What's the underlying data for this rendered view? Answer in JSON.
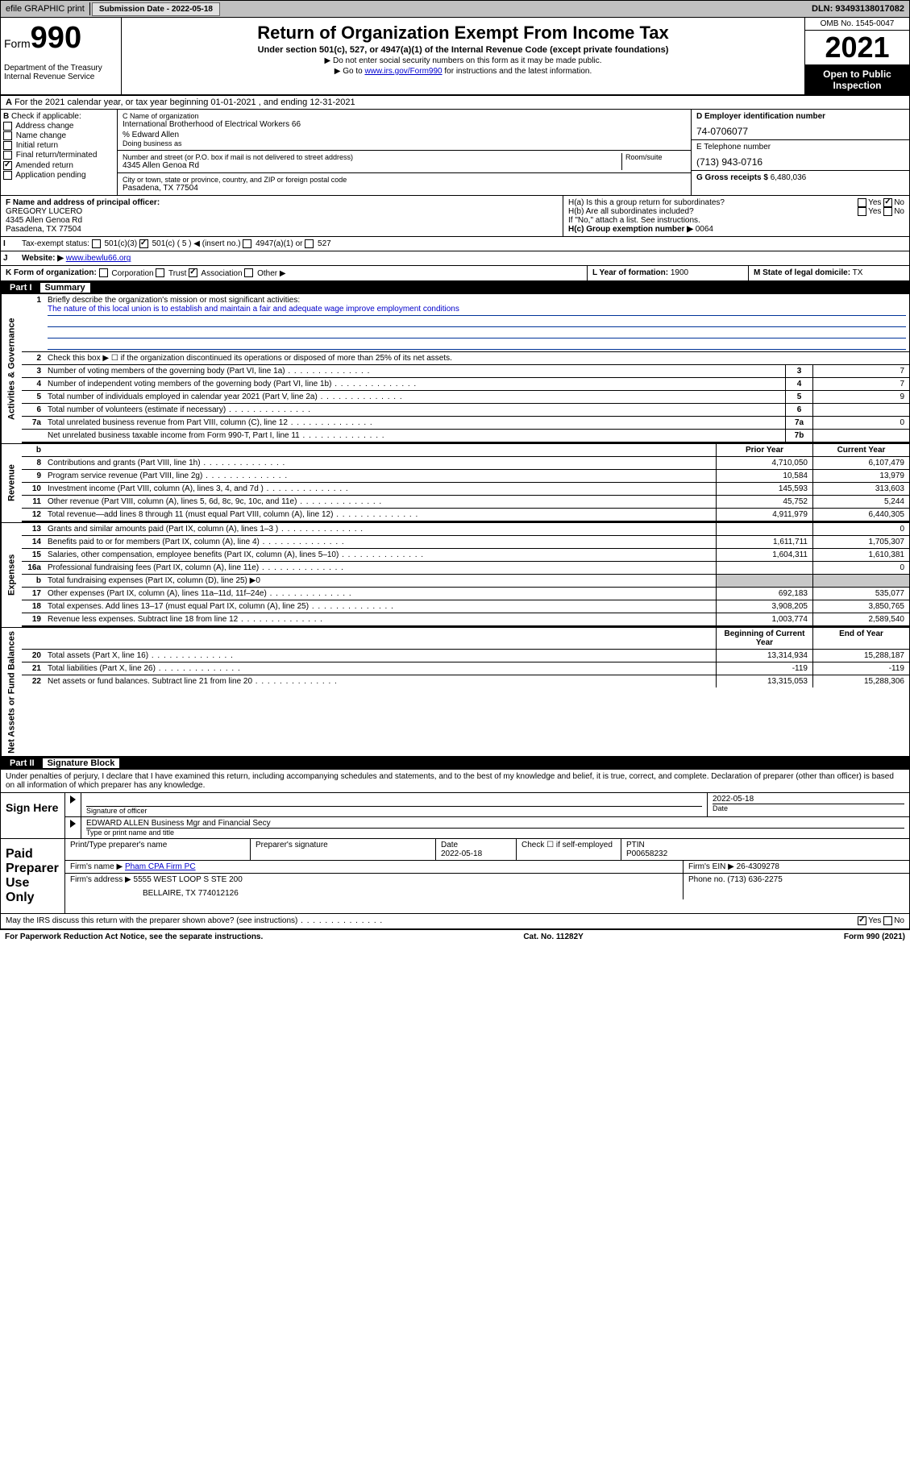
{
  "topbar": {
    "efile": "efile GRAPHIC print",
    "submission_label": "Submission Date - 2022-05-18",
    "dln": "DLN: 93493138017082"
  },
  "header": {
    "form_word": "Form",
    "form_num": "990",
    "dept": "Department of the Treasury\nInternal Revenue Service",
    "title": "Return of Organization Exempt From Income Tax",
    "sub": "Under section 501(c), 527, or 4947(a)(1) of the Internal Revenue Code (except private foundations)",
    "note1": "Do not enter social security numbers on this form as it may be made public.",
    "note2_pre": "Go to ",
    "note2_link": "www.irs.gov/Form990",
    "note2_post": " for instructions and the latest information.",
    "omb": "OMB No. 1545-0047",
    "year": "2021",
    "open": "Open to Public Inspection"
  },
  "lineA": "For the 2021 calendar year, or tax year beginning 01-01-2021   , and ending 12-31-2021",
  "B": {
    "label": "Check if applicable:",
    "items": [
      "Address change",
      "Name change",
      "Initial return",
      "Final return/terminated",
      "Amended return",
      "Application pending"
    ],
    "checked_idx": 4,
    "prefix": "B"
  },
  "C": {
    "name_lbl": "C Name of organization",
    "name": "International Brotherhood of Electrical Workers 66",
    "care_lbl": "% Edward Allen",
    "dba_lbl": "Doing business as",
    "addr_lbl": "Number and street (or P.O. box if mail is not delivered to street address)",
    "room_lbl": "Room/suite",
    "addr": "4345 Allen Genoa Rd",
    "city_lbl": "City or town, state or province, country, and ZIP or foreign postal code",
    "city": "Pasadena, TX  77504"
  },
  "D": {
    "lbl": "D Employer identification number",
    "val": "74-0706077"
  },
  "E": {
    "lbl": "E Telephone number",
    "val": "(713) 943-0716"
  },
  "G": {
    "lbl": "G Gross receipts $",
    "val": "6,480,036"
  },
  "F": {
    "lbl": "F  Name and address of principal officer:",
    "name": "GREGORY LUCERO",
    "addr1": "4345 Allen Genoa Rd",
    "addr2": "Pasadena, TX  77504"
  },
  "H": {
    "a": "H(a)  Is this a group return for subordinates?",
    "b": "H(b)  Are all subordinates included?",
    "b_note": "If \"No,\" attach a list. See instructions.",
    "c_lbl": "H(c)  Group exemption number ▶",
    "c_val": "0064",
    "yes": "Yes",
    "no": "No"
  },
  "I": {
    "lbl": "Tax-exempt status:",
    "opts": [
      "501(c)(3)",
      "501(c) ( 5 ) ◀ (insert no.)",
      "4947(a)(1) or",
      "527"
    ],
    "checked_idx": 1
  },
  "J": {
    "lbl": "Website: ▶",
    "val": "www.ibewlu66.org"
  },
  "K": {
    "lbl": "K Form of organization:",
    "opts": [
      "Corporation",
      "Trust",
      "Association",
      "Other ▶"
    ],
    "checked_idx": 2
  },
  "L": {
    "lbl": "L Year of formation:",
    "val": "1900"
  },
  "M": {
    "lbl": "M State of legal domicile:",
    "val": "TX"
  },
  "partI": {
    "title": "Part I",
    "name": "Summary",
    "sections": [
      {
        "side": "Activities & Governance",
        "rows": [
          {
            "type": "mission",
            "n": "1",
            "t": "Briefly describe the organization's mission or most significant activities:",
            "val": "The nature of this local union is to establish and maintain a fair and adequate wage improve employment conditions"
          },
          {
            "type": "check",
            "n": "2",
            "t": "Check this box ▶ ☐  if the organization discontinued its operations or disposed of more than 25% of its net assets."
          },
          {
            "type": "num",
            "n": "3",
            "t": "Number of voting members of the governing body (Part VI, line 1a)",
            "bx": "3",
            "v": "7"
          },
          {
            "type": "num",
            "n": "4",
            "t": "Number of independent voting members of the governing body (Part VI, line 1b)",
            "bx": "4",
            "v": "7"
          },
          {
            "type": "num",
            "n": "5",
            "t": "Total number of individuals employed in calendar year 2021 (Part V, line 2a)",
            "bx": "5",
            "v": "9"
          },
          {
            "type": "num",
            "n": "6",
            "t": "Total number of volunteers (estimate if necessary)",
            "bx": "6",
            "v": ""
          },
          {
            "type": "num",
            "n": "7a",
            "t": "Total unrelated business revenue from Part VIII, column (C), line 12",
            "bx": "7a",
            "v": "0"
          },
          {
            "type": "num",
            "n": "",
            "t": "Net unrelated business taxable income from Form 990-T, Part I, line 11",
            "bx": "7b",
            "v": "",
            "thick": true
          }
        ]
      },
      {
        "side": "Revenue",
        "header": [
          "b",
          "",
          "Prior Year",
          "Current Year"
        ],
        "rows": [
          {
            "n": "8",
            "t": "Contributions and grants (Part VIII, line 1h)",
            "p": "4,710,050",
            "c": "6,107,479"
          },
          {
            "n": "9",
            "t": "Program service revenue (Part VIII, line 2g)",
            "p": "10,584",
            "c": "13,979"
          },
          {
            "n": "10",
            "t": "Investment income (Part VIII, column (A), lines 3, 4, and 7d )",
            "p": "145,593",
            "c": "313,603"
          },
          {
            "n": "11",
            "t": "Other revenue (Part VIII, column (A), lines 5, 6d, 8c, 9c, 10c, and 11e)",
            "p": "45,752",
            "c": "5,244"
          },
          {
            "n": "12",
            "t": "Total revenue—add lines 8 through 11 (must equal Part VIII, column (A), line 12)",
            "p": "4,911,979",
            "c": "6,440,305",
            "thick": true
          }
        ]
      },
      {
        "side": "Expenses",
        "rows": [
          {
            "n": "13",
            "t": "Grants and similar amounts paid (Part IX, column (A), lines 1–3 )",
            "p": "",
            "c": "0"
          },
          {
            "n": "14",
            "t": "Benefits paid to or for members (Part IX, column (A), line 4)",
            "p": "1,611,711",
            "c": "1,705,307"
          },
          {
            "n": "15",
            "t": "Salaries, other compensation, employee benefits (Part IX, column (A), lines 5–10)",
            "p": "1,604,311",
            "c": "1,610,381"
          },
          {
            "n": "16a",
            "t": "Professional fundraising fees (Part IX, column (A), line 11e)",
            "p": "",
            "c": "0"
          },
          {
            "n": "b",
            "t": "Total fundraising expenses (Part IX, column (D), line 25) ▶0",
            "shade": true
          },
          {
            "n": "17",
            "t": "Other expenses (Part IX, column (A), lines 11a–11d, 11f–24e)",
            "p": "692,183",
            "c": "535,077"
          },
          {
            "n": "18",
            "t": "Total expenses. Add lines 13–17 (must equal Part IX, column (A), line 25)",
            "p": "3,908,205",
            "c": "3,850,765"
          },
          {
            "n": "19",
            "t": "Revenue less expenses. Subtract line 18 from line 12",
            "p": "1,003,774",
            "c": "2,589,540",
            "thick": true
          }
        ]
      },
      {
        "side": "Net Assets or Fund Balances",
        "header": [
          "",
          "",
          "Beginning of Current Year",
          "End of Year"
        ],
        "rows": [
          {
            "n": "20",
            "t": "Total assets (Part X, line 16)",
            "p": "13,314,934",
            "c": "15,288,187"
          },
          {
            "n": "21",
            "t": "Total liabilities (Part X, line 26)",
            "p": "-119",
            "c": "-119"
          },
          {
            "n": "22",
            "t": "Net assets or fund balances. Subtract line 21 from line 20",
            "p": "13,315,053",
            "c": "15,288,306"
          }
        ]
      }
    ]
  },
  "partII": {
    "title": "Part II",
    "name": "Signature Block",
    "decl": "Under penalties of perjury, I declare that I have examined this return, including accompanying schedules and statements, and to the best of my knowledge and belief, it is true, correct, and complete. Declaration of preparer (other than officer) is based on all information of which preparer has any knowledge.",
    "sign_here": "Sign Here",
    "sig_officer_lbl": "Signature of officer",
    "date_lbl": "Date",
    "sig_date": "2022-05-18",
    "officer_name": "EDWARD ALLEN Business Mgr and Financial Secy",
    "officer_sub": "Type or print name and title",
    "paid": "Paid Preparer Use Only",
    "prep_name_lbl": "Print/Type preparer's name",
    "prep_sig_lbl": "Preparer's signature",
    "prep_date_lbl": "Date",
    "prep_date": "2022-05-18",
    "prep_check_lbl": "Check ☐ if self-employed",
    "ptin_lbl": "PTIN",
    "ptin": "P00658232",
    "firm_name_lbl": "Firm's name     ▶",
    "firm_name": "Pham CPA Firm PC",
    "firm_ein_lbl": "Firm's EIN ▶",
    "firm_ein": "26-4309278",
    "firm_addr_lbl": "Firm's address ▶",
    "firm_addr1": "5555 WEST LOOP S STE 200",
    "firm_addr2": "BELLAIRE, TX  774012126",
    "phone_lbl": "Phone no.",
    "phone": "(713) 636-2275",
    "discuss": "May the IRS discuss this return with the preparer shown above? (see instructions)",
    "yes": "Yes",
    "no": "No"
  },
  "footer": {
    "left": "For Paperwork Reduction Act Notice, see the separate instructions.",
    "mid": "Cat. No. 11282Y",
    "right": "Form 990 (2021)"
  },
  "colors": {
    "link": "#0000cc",
    "shade": "#c8c8c8",
    "topbar": "#c0c0c0"
  }
}
